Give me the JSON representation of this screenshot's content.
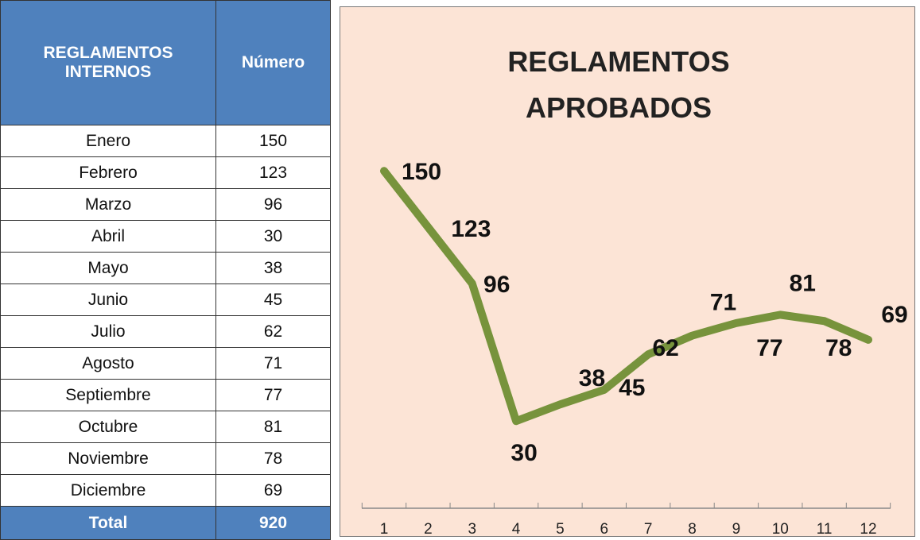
{
  "table": {
    "header": [
      "REGLAMENTOS INTERNOS",
      "Número"
    ],
    "rows": [
      [
        "Enero",
        150
      ],
      [
        "Febrero",
        123
      ],
      [
        "Marzo",
        96
      ],
      [
        "Abril",
        30
      ],
      [
        "Mayo",
        38
      ],
      [
        "Junio",
        45
      ],
      [
        "Julio",
        62
      ],
      [
        "Agosto",
        71
      ],
      [
        "Septiembre",
        77
      ],
      [
        "Octubre",
        81
      ],
      [
        "Noviembre",
        78
      ],
      [
        "Diciembre",
        69
      ]
    ],
    "total": [
      "Total",
      920
    ]
  },
  "chart_data": {
    "type": "line",
    "title": "REGLAMENTOS APROBADOS",
    "categories": [
      "1",
      "2",
      "3",
      "4",
      "5",
      "6",
      "7",
      "8",
      "9",
      "10",
      "11",
      "12"
    ],
    "values": [
      150,
      123,
      96,
      30,
      38,
      45,
      62,
      71,
      77,
      81,
      78,
      69
    ],
    "color": "#77933c"
  }
}
